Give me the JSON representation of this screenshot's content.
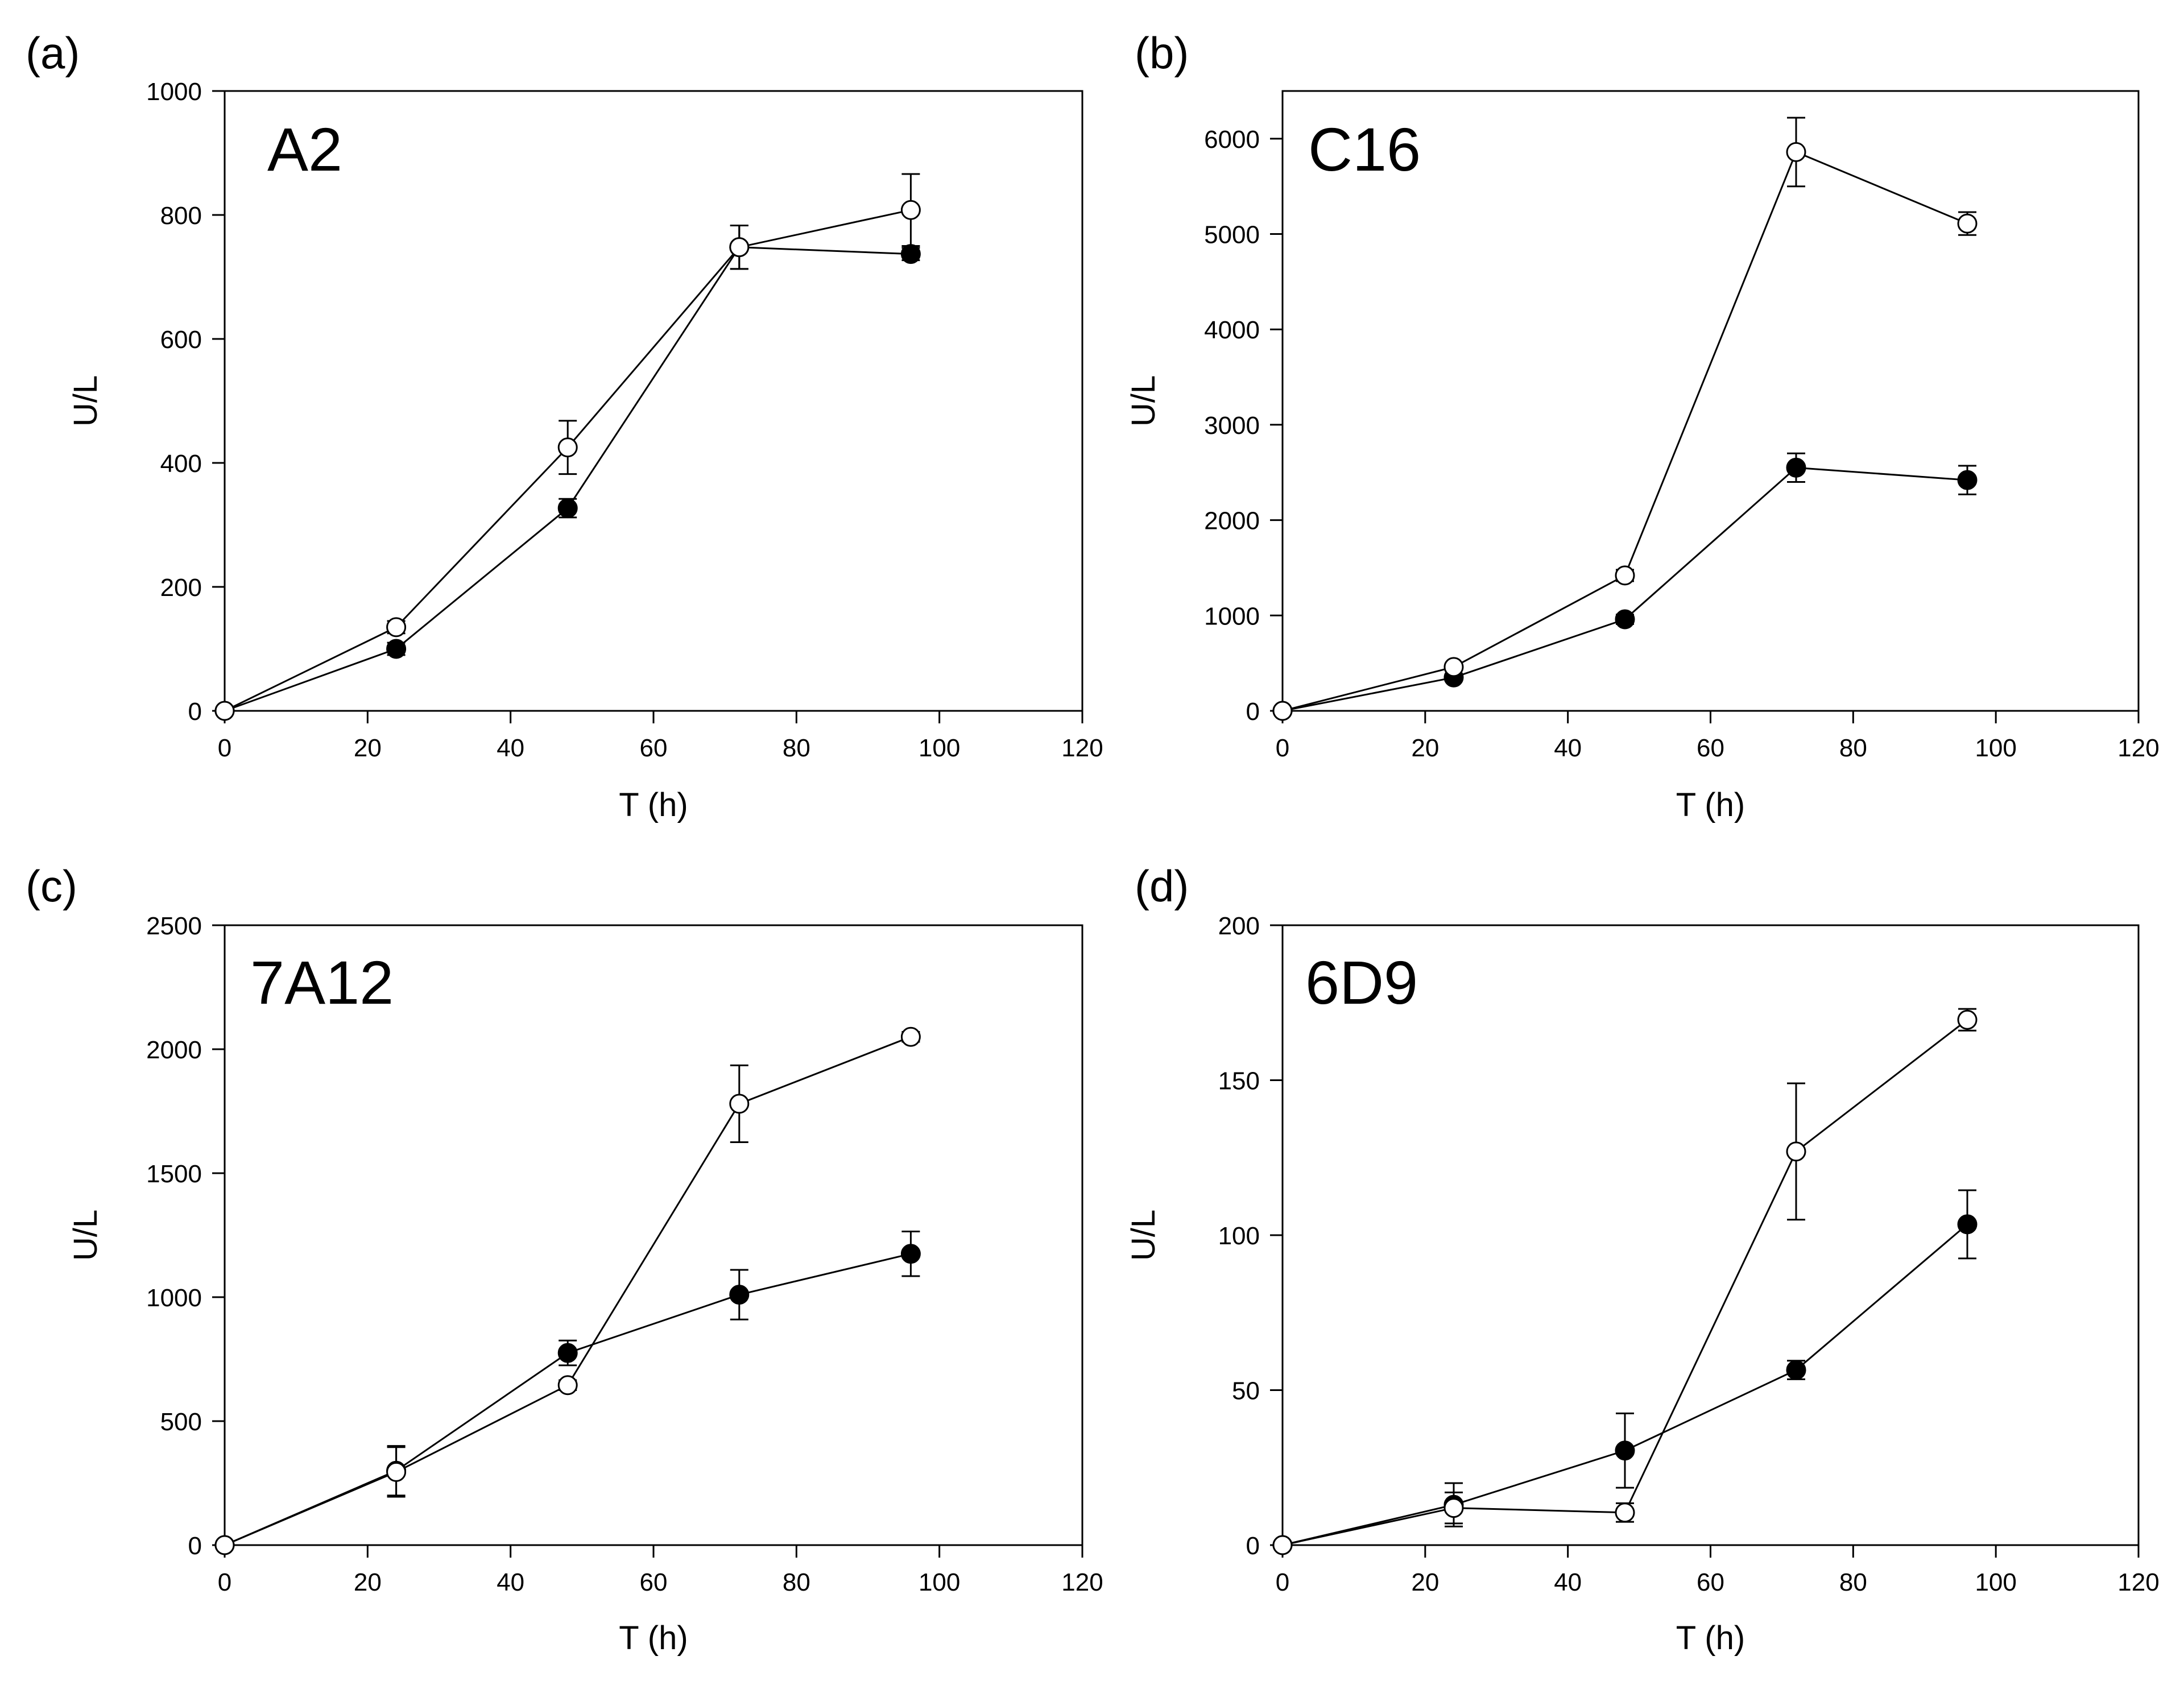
{
  "chart_data": [
    {
      "type": "line",
      "panel_label": "(a)",
      "title": "A2",
      "xlabel": "T (h)",
      "ylabel": "U/L",
      "xlim": [
        0,
        120
      ],
      "ylim": [
        0,
        1000
      ],
      "xticks": [
        "0",
        "20",
        "40",
        "60",
        "80",
        "100",
        "120"
      ],
      "yticks": [
        "0",
        "200",
        "400",
        "600",
        "800",
        "1000"
      ],
      "series": [
        {
          "name": "filled",
          "marker": "filled-circle",
          "x": [
            0,
            24,
            48,
            72,
            96
          ],
          "values": [
            0,
            100,
            327,
            748,
            737
          ],
          "errors": [
            0,
            10,
            15,
            35,
            10
          ]
        },
        {
          "name": "open",
          "marker": "open-circle",
          "x": [
            0,
            24,
            48,
            72,
            96
          ],
          "values": [
            0,
            135,
            425,
            748,
            808
          ],
          "errors": [
            0,
            10,
            43,
            35,
            58
          ]
        }
      ]
    },
    {
      "type": "line",
      "panel_label": "(b)",
      "title": "C16",
      "xlabel": "T (h)",
      "ylabel": "U/L",
      "xlim": [
        0,
        120
      ],
      "ylim": [
        0,
        6500
      ],
      "xticks": [
        "0",
        "20",
        "40",
        "60",
        "80",
        "100",
        "120"
      ],
      "yticks": [
        "0",
        "1000",
        "2000",
        "3000",
        "4000",
        "5000",
        "6000"
      ],
      "series": [
        {
          "name": "filled",
          "marker": "filled-circle",
          "x": [
            0,
            24,
            48,
            72,
            96
          ],
          "values": [
            0,
            350,
            960,
            2550,
            2420
          ],
          "errors": [
            0,
            30,
            50,
            150,
            150
          ]
        },
        {
          "name": "open",
          "marker": "open-circle",
          "x": [
            0,
            24,
            48,
            72,
            96
          ],
          "values": [
            0,
            460,
            1420,
            5860,
            5110
          ],
          "errors": [
            0,
            30,
            60,
            360,
            120
          ]
        }
      ]
    },
    {
      "type": "line",
      "panel_label": "(c)",
      "title": "7A12",
      "xlabel": "T (h)",
      "ylabel": "U/L",
      "xlim": [
        0,
        120
      ],
      "ylim": [
        0,
        2500
      ],
      "xticks": [
        "0",
        "20",
        "40",
        "60",
        "80",
        "100",
        "120"
      ],
      "yticks": [
        "0",
        "500",
        "1000",
        "1500",
        "2000",
        "2500"
      ],
      "series": [
        {
          "name": "filled",
          "marker": "filled-circle",
          "x": [
            0,
            24,
            48,
            72,
            96
          ],
          "values": [
            0,
            300,
            775,
            1010,
            1175
          ],
          "errors": [
            0,
            100,
            50,
            100,
            90
          ]
        },
        {
          "name": "open",
          "marker": "open-circle",
          "x": [
            0,
            24,
            48,
            72,
            96
          ],
          "values": [
            0,
            295,
            645,
            1780,
            2050
          ],
          "errors": [
            0,
            100,
            20,
            155,
            20
          ]
        }
      ]
    },
    {
      "type": "line",
      "panel_label": "(d)",
      "title": "6D9",
      "xlabel": "T (h)",
      "ylabel": "U/L",
      "xlim": [
        0,
        120
      ],
      "ylim": [
        0,
        200
      ],
      "xticks": [
        "0",
        "20",
        "40",
        "60",
        "80",
        "100",
        "120"
      ],
      "yticks": [
        "0",
        "50",
        "100",
        "150",
        "200"
      ],
      "series": [
        {
          "name": "filled",
          "marker": "filled-circle",
          "x": [
            0,
            24,
            48,
            72,
            96
          ],
          "values": [
            0,
            13,
            30.5,
            56.5,
            103.5
          ],
          "errors": [
            0,
            7,
            12,
            3,
            11
          ]
        },
        {
          "name": "open",
          "marker": "open-circle",
          "x": [
            0,
            24,
            48,
            72,
            96
          ],
          "values": [
            0,
            12,
            10.5,
            127,
            169.5
          ],
          "errors": [
            0,
            5,
            3,
            22,
            3.5
          ]
        }
      ]
    }
  ]
}
